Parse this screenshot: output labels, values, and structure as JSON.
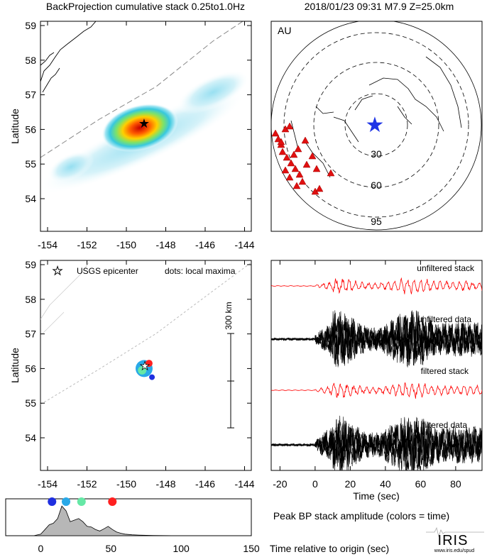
{
  "header": {
    "left_title": "BackProjection cumulative stack 0.25to1.0Hz",
    "right_title": "2018/01/23 09:31  M7.9  Z=25.0km"
  },
  "map_top": {
    "ylabel": "Latitude",
    "xticks": [
      "-154",
      "-152",
      "-150",
      "-148",
      "-146",
      "-144"
    ],
    "yticks": [
      "54",
      "55",
      "56",
      "57",
      "58",
      "59"
    ],
    "epicenter": {
      "lon": -148.9,
      "lat": 56.05
    }
  },
  "map_bottom": {
    "ylabel": "Latitude",
    "xticks": [
      "-154",
      "-152",
      "-150",
      "-148",
      "-146",
      "-144"
    ],
    "yticks": [
      "54",
      "55",
      "56",
      "57",
      "58",
      "59"
    ],
    "legend_epicenter": "USGS epicenter",
    "legend_dots": "dots: local maxima",
    "scale_label": "300 km",
    "maxima": [
      {
        "lon": -149.1,
        "lat": 56.0,
        "color": "#29a9e8"
      },
      {
        "lon": -149.2,
        "lat": 55.95,
        "color": "#66e8a6"
      },
      {
        "lon": -148.85,
        "lat": 56.15,
        "color": "#ff2020"
      },
      {
        "lon": -148.7,
        "lat": 55.75,
        "color": "#1f2fe0"
      }
    ]
  },
  "global_map": {
    "label": "AU",
    "ring_labels": [
      "30",
      "60",
      "95"
    ]
  },
  "traces": {
    "labels": [
      "unfiltered stack",
      "unfiltered data",
      "filtered stack",
      "filtered data"
    ],
    "xlabel": "Time (sec)",
    "xticks": [
      "-20",
      "0",
      "20",
      "40",
      "60",
      "80"
    ]
  },
  "amplitude": {
    "title": "Peak BP stack amplitude (colors = time)",
    "xlabel": "Time relative to origin (sec)",
    "xticks": [
      "0",
      "50",
      "100",
      "150"
    ]
  },
  "logo": {
    "text": "IRIS",
    "url": "www.iris.edu/spud"
  },
  "chart_data": [
    {
      "type": "heatmap",
      "title": "BackProjection cumulative stack 0.25to1.0Hz",
      "xlabel": "",
      "ylabel": "Latitude",
      "xlim": [
        -155,
        -143.5
      ],
      "ylim": [
        53,
        59
      ],
      "peak": {
        "lon": -148.9,
        "lat": 56.05
      }
    },
    {
      "type": "line",
      "xlabel": "Time (sec)",
      "xlim": [
        -25,
        95
      ],
      "series": [
        {
          "name": "unfiltered stack",
          "color": "#ff0000"
        },
        {
          "name": "unfiltered data",
          "color": "#000000"
        },
        {
          "name": "filtered stack",
          "color": "#ff0000"
        },
        {
          "name": "filtered data",
          "color": "#000000"
        }
      ]
    },
    {
      "type": "area",
      "title": "Peak BP stack amplitude (colors = time)",
      "xlabel": "Time relative to origin (sec)",
      "xlim": [
        -25,
        150
      ],
      "x": [
        -25,
        -5,
        0,
        3,
        6,
        9,
        12,
        15,
        18,
        21,
        24,
        27,
        30,
        33,
        36,
        39,
        42,
        45,
        48,
        51,
        54,
        57,
        60,
        65,
        70,
        80,
        100,
        150
      ],
      "values": [
        0,
        0,
        0.05,
        0.2,
        0.35,
        0.4,
        0.55,
        0.95,
        0.8,
        0.45,
        0.5,
        0.55,
        0.45,
        0.3,
        0.28,
        0.2,
        0.15,
        0.22,
        0.3,
        0.2,
        0.12,
        0.08,
        0.05,
        0.03,
        0.02,
        0.01,
        0,
        0
      ],
      "maxima_times": [
        {
          "t": 8,
          "color": "#1f2fe0"
        },
        {
          "t": 18,
          "color": "#29a9e8"
        },
        {
          "t": 29,
          "color": "#66e8a6"
        },
        {
          "t": 51,
          "color": "#ff2020"
        }
      ]
    }
  ]
}
